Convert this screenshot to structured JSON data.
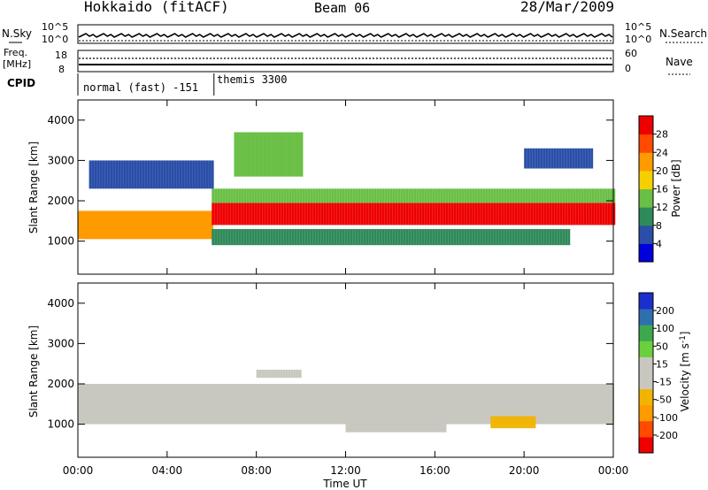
{
  "header": {
    "station": "Hokkaido (fitACF)",
    "beam": "Beam 06",
    "date": "28/Mar/2009"
  },
  "panels": {
    "nsky": {
      "left_label": "N.Sky",
      "right_label": "N.Search",
      "ticks": [
        "10^5",
        "10^0"
      ]
    },
    "freq": {
      "left_label_1": "Freq.",
      "left_label_2": "[MHz]",
      "right_label": "Nave",
      "left_ticks": [
        "18",
        "8"
      ],
      "right_ticks": [
        "60",
        "0"
      ]
    },
    "cpid": {
      "label": "CPID",
      "segments": [
        {
          "name": "normal (fast) -151",
          "start_hour": 0,
          "end_hour": 6.1
        },
        {
          "name": "themis 3300",
          "start_hour": 6.1,
          "end_hour": 24
        }
      ]
    }
  },
  "colors": {
    "power_bar": [
      "#0000dd",
      "#2b4fa8",
      "#2f8a5a",
      "#6abf45",
      "#f5d000",
      "#ff9a00",
      "#ff4a00",
      "#ee0000"
    ],
    "velocity_bar": [
      "#ee0000",
      "#ff4a00",
      "#ff9a00",
      "#f2b400",
      "#c8c8c0",
      "#c8c8c0",
      "#6ccf3c",
      "#3ea84f",
      "#2e6fb0",
      "#1a2fcc"
    ],
    "ground_scatter": "#c8c8c0"
  },
  "chart_data": [
    {
      "type": "heatmap",
      "ylabel": "Slant Range [km]",
      "y_ticks": [
        "4000",
        "3000",
        "2000",
        "1000"
      ],
      "ylim": [
        180,
        4500
      ],
      "colorbar": {
        "label": "Power [dB]",
        "ticks": [
          "28",
          "24",
          "20",
          "16",
          "12",
          "8",
          "4"
        ],
        "range": [
          0,
          32
        ]
      },
      "bands": [
        {
          "t0": 0,
          "t1": 6,
          "r0": 1050,
          "r1": 1750,
          "value": 20
        },
        {
          "t0": 6,
          "t1": 24,
          "r0": 1400,
          "r1": 1950,
          "value": 28
        },
        {
          "t0": 6,
          "t1": 24,
          "r0": 1950,
          "r1": 2300,
          "value": 12
        },
        {
          "t0": 6,
          "t1": 22,
          "r0": 900,
          "r1": 1300,
          "value": 8
        },
        {
          "t0": 7,
          "t1": 10,
          "r0": 2600,
          "r1": 3700,
          "value": 12
        },
        {
          "t0": 20,
          "t1": 23,
          "r0": 2800,
          "r1": 3300,
          "value": 4
        },
        {
          "t0": 0.5,
          "t1": 6,
          "r0": 2300,
          "r1": 3000,
          "value": 4
        }
      ]
    },
    {
      "type": "heatmap",
      "ylabel": "Slant Range [km]",
      "y_ticks": [
        "4000",
        "3000",
        "2000",
        "1000"
      ],
      "ylim": [
        180,
        4500
      ],
      "colorbar": {
        "label": "Velocity [m s^-1]",
        "ticks": [
          "200",
          "100",
          "50",
          "15",
          "-15",
          "-50",
          "-100",
          "-200"
        ],
        "range": [
          -250,
          250
        ]
      },
      "bands": [
        {
          "t0": 0,
          "t1": 24,
          "r0": 1000,
          "r1": 2000,
          "value": 0
        },
        {
          "t0": 12,
          "t1": 16.5,
          "r0": 800,
          "r1": 1200,
          "value": 40
        },
        {
          "t0": 8,
          "t1": 10,
          "r0": 2150,
          "r1": 2350,
          "value": 40
        },
        {
          "t0": 18.5,
          "t1": 20.5,
          "r0": 900,
          "r1": 1200,
          "value": -80
        }
      ]
    }
  ],
  "x_axis": {
    "label": "Time UT",
    "tick_labels": [
      "00:00",
      "04:00",
      "08:00",
      "12:00",
      "16:00",
      "20:00",
      "00:00"
    ],
    "range_hours": [
      0,
      24
    ]
  }
}
